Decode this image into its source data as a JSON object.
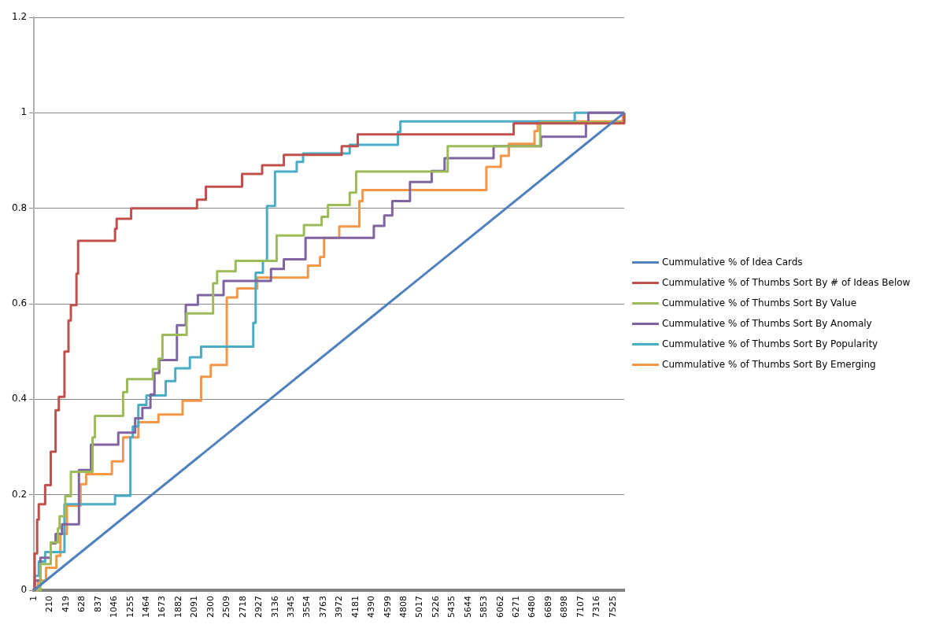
{
  "chart_data": {
    "type": "step",
    "xlim": [
      1,
      7670
    ],
    "xticks": [
      1,
      210,
      419,
      628,
      837,
      1046,
      1255,
      1464,
      1673,
      1882,
      2091,
      2300,
      2509,
      2718,
      2927,
      3136,
      3345,
      3554,
      3763,
      3972,
      4181,
      4390,
      4599,
      4808,
      5017,
      5226,
      5435,
      5644,
      5853,
      6062,
      6271,
      6480,
      6689,
      6898,
      7107,
      7316,
      7525
    ],
    "ylim": [
      0,
      1.2
    ],
    "yticks": [
      0,
      0.2,
      0.4,
      0.6,
      0.8,
      1,
      1.2
    ],
    "grid": "y",
    "legend": "right",
    "marker": "none",
    "line_style": "solid",
    "series": [
      {
        "name": "Cummulative % of Idea Cards",
        "type": "line",
        "color": "#4f81bd",
        "x": [
          1,
          7670
        ],
        "values": [
          0,
          1
        ]
      },
      {
        "name": "Cummulative % of Thumbs  Sort By # of Ideas Below",
        "color": "#c0504d",
        "x": [
          1,
          11,
          43,
          64,
          147,
          220,
          283,
          325,
          398,
          450,
          481,
          554,
          575,
          1055,
          1076,
          1264,
          2120,
          2235,
          2705,
          2966,
          3248,
          4000,
          4208,
          6234,
          7670
        ],
        "values": [
          0,
          0.077,
          0.148,
          0.18,
          0.22,
          0.29,
          0.377,
          0.405,
          0.5,
          0.565,
          0.597,
          0.663,
          0.732,
          0.757,
          0.778,
          0.8,
          0.818,
          0.845,
          0.872,
          0.89,
          0.912,
          0.93,
          0.955,
          0.978,
          1
        ]
      },
      {
        "name": "Cummulative % of Thumbs Sort By Value",
        "color": "#9bbb59",
        "x": [
          1,
          85,
          220,
          314,
          335,
          408,
          481,
          763,
          794,
          1160,
          1212,
          1546,
          1619,
          1671,
          1985,
          2329,
          2381,
          2621,
          3154,
          3509,
          3739,
          3822,
          4104,
          4187,
          5377,
          6578,
          7670
        ],
        "values": [
          0,
          0.055,
          0.1,
          0.13,
          0.155,
          0.197,
          0.248,
          0.32,
          0.365,
          0.415,
          0.442,
          0.463,
          0.485,
          0.535,
          0.58,
          0.643,
          0.668,
          0.69,
          0.743,
          0.765,
          0.782,
          0.807,
          0.833,
          0.877,
          0.93,
          0.98,
          1
        ]
      },
      {
        "name": "Cummulative % of Thumbs Sort By Anomaly",
        "color": "#8064a2",
        "x": [
          1,
          11,
          85,
          220,
          283,
          366,
          586,
          742,
          1097,
          1316,
          1410,
          1515,
          1567,
          1630,
          1859,
          1974,
          2131,
          2465,
          3081,
          3248,
          3530,
          4417,
          4553,
          4657,
          4887,
          5169,
          5336,
          5973,
          6589,
          7173,
          7204,
          7670
        ],
        "values": [
          0,
          0.02,
          0.068,
          0.098,
          0.118,
          0.138,
          0.252,
          0.305,
          0.33,
          0.36,
          0.382,
          0.41,
          0.455,
          0.482,
          0.555,
          0.598,
          0.618,
          0.648,
          0.673,
          0.693,
          0.738,
          0.763,
          0.785,
          0.815,
          0.855,
          0.878,
          0.905,
          0.93,
          0.95,
          0.98,
          1,
          1
        ]
      },
      {
        "name": "Cummulative % of Thumbs Sort By Popularity",
        "color": "#4bacc6",
        "x": [
          1,
          11,
          64,
          147,
          398,
          1055,
          1254,
          1285,
          1358,
          1463,
          1713,
          1838,
          2027,
          2173,
          2851,
          2882,
          2976,
          3029,
          3133,
          3415,
          3498,
          4104,
          4730,
          4762,
          7027,
          7670
        ],
        "values": [
          0,
          0.03,
          0.06,
          0.08,
          0.18,
          0.198,
          0.32,
          0.343,
          0.388,
          0.408,
          0.438,
          0.465,
          0.488,
          0.51,
          0.56,
          0.665,
          0.69,
          0.805,
          0.877,
          0.897,
          0.915,
          0.933,
          0.96,
          0.982,
          1,
          1
        ]
      },
      {
        "name": "Cummulative % of Thumbs Sort By Emerging",
        "color": "#f79646",
        "x": [
          1,
          53,
          158,
          293,
          345,
          429,
          607,
          680,
          1014,
          1160,
          1358,
          1619,
          1932,
          2173,
          2298,
          2507,
          2642,
          2903,
          3561,
          3718,
          3770,
          3968,
          4229,
          4271,
          5879,
          6067,
          6171,
          6505,
          6547,
          7653,
          7670
        ],
        "values": [
          0,
          0.02,
          0.047,
          0.072,
          0.118,
          0.177,
          0.222,
          0.243,
          0.27,
          0.32,
          0.352,
          0.368,
          0.397,
          0.447,
          0.472,
          0.613,
          0.632,
          0.655,
          0.68,
          0.698,
          0.738,
          0.762,
          0.815,
          0.838,
          0.887,
          0.91,
          0.935,
          0.962,
          0.982,
          1,
          1
        ]
      }
    ]
  }
}
